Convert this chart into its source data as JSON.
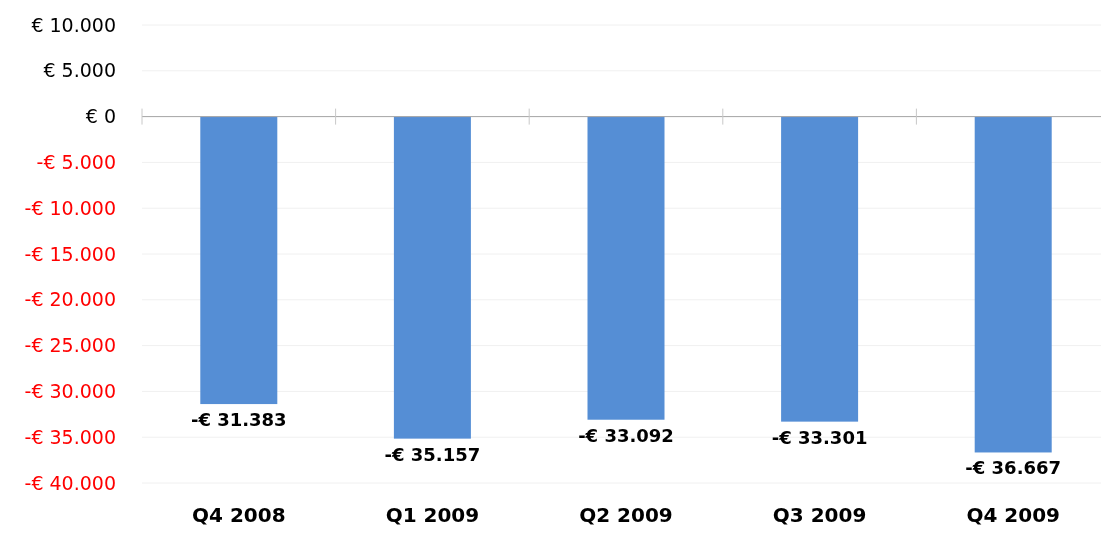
{
  "chart_data": {
    "type": "bar",
    "categories": [
      "Q4 2008",
      "Q1 2009",
      "Q2 2009",
      "Q3 2009",
      "Q4 2009"
    ],
    "values": [
      -31383,
      -35157,
      -33092,
      -33301,
      -36667
    ],
    "value_labels": [
      "-€ 31.383",
      "-€ 35.157",
      "-€ 33.092",
      "-€ 33.301",
      "-€ 36.667"
    ],
    "color": "#558ed5",
    "ylim": [
      -40000,
      10000
    ],
    "yticks": [
      {
        "value": 10000,
        "label": "€ 10.000"
      },
      {
        "value": 5000,
        "label": "€ 5.000"
      },
      {
        "value": 0,
        "label": "€ 0"
      },
      {
        "value": -5000,
        "label": "-€ 5.000"
      },
      {
        "value": -10000,
        "label": "-€ 10.000"
      },
      {
        "value": -15000,
        "label": "-€ 15.000"
      },
      {
        "value": -20000,
        "label": "-€ 20.000"
      },
      {
        "value": -25000,
        "label": "-€ 25.000"
      },
      {
        "value": -30000,
        "label": "-€ 30.000"
      },
      {
        "value": -35000,
        "label": "-€ 35.000"
      },
      {
        "value": -40000,
        "label": "-€ 40.000"
      }
    ],
    "grid": "y"
  }
}
